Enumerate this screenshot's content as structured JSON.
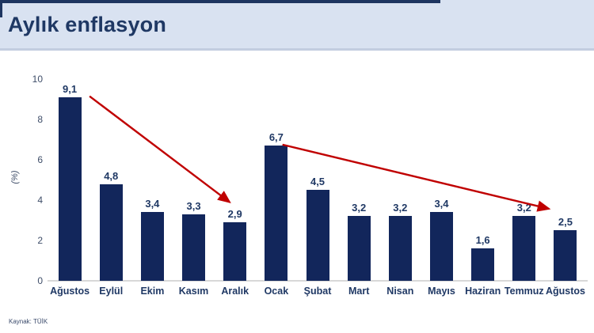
{
  "header": {
    "title": "Aylık enflasyon"
  },
  "footer": {
    "source": "Kaynak: TÜİK"
  },
  "chart_data": {
    "type": "bar",
    "title": "Aylık enflasyon",
    "categories": [
      "Ağustos",
      "Eylül",
      "Ekim",
      "Kasım",
      "Aralık",
      "Ocak",
      "Şubat",
      "Mart",
      "Nisan",
      "Mayıs",
      "Haziran",
      "Temmuz",
      "Ağustos"
    ],
    "values": [
      9.1,
      4.8,
      3.4,
      3.3,
      2.9,
      6.7,
      4.5,
      3.2,
      3.2,
      3.4,
      1.6,
      3.2,
      2.5
    ],
    "value_labels": [
      "9,1",
      "4,8",
      "3,4",
      "3,3",
      "2,9",
      "6,7",
      "4,5",
      "3,2",
      "3,2",
      "3,4",
      "1,6",
      "3,2",
      "2,5"
    ],
    "xlabel": "",
    "ylabel": "(%)",
    "ylim": [
      0,
      10
    ],
    "yticks": [
      0,
      2,
      4,
      6,
      8,
      10
    ],
    "grid": false,
    "legend": "none",
    "annotations": {
      "arrows": [
        {
          "from": {
            "month_pos": 0.48,
            "value": 9.15
          },
          "to": {
            "month_pos": 3.87,
            "value": 3.9
          }
        },
        {
          "from": {
            "month_pos": 5.15,
            "value": 6.75
          },
          "to": {
            "month_pos": 11.6,
            "value": 3.57
          }
        }
      ]
    },
    "colors": {
      "bar": "#12265b",
      "arrow": "#c00000",
      "title": "#1f3864",
      "header_bg": "#d9e2f1",
      "header_border": "#c3cde0",
      "top_strip": "#1e3560",
      "value_label": "#1f3864",
      "month_label": "#1f3864",
      "axis_label": "#3e4d68",
      "baseline": "#d8d8d8",
      "source": "#3a4a6b"
    }
  }
}
